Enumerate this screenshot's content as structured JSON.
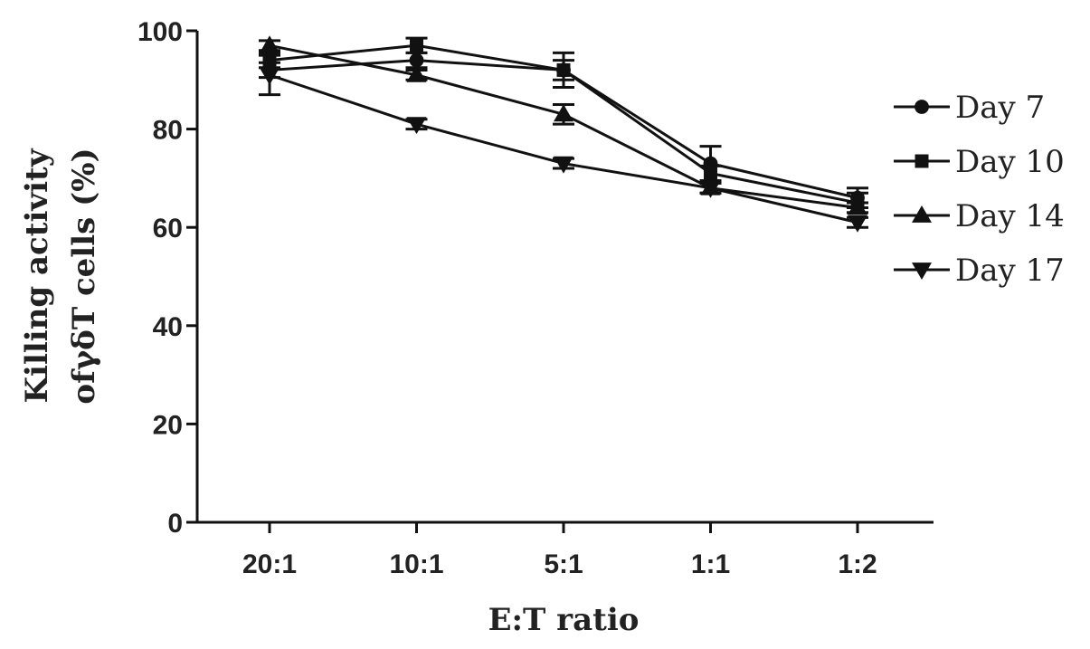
{
  "chart_data": {
    "type": "line",
    "title": "",
    "xlabel": "E:T ratio",
    "ylabel_lines": [
      "Killing activity",
      "ofγδT cells (%)"
    ],
    "categories": [
      "20:1",
      "10:1",
      "5:1",
      "1:1",
      "1:2"
    ],
    "ylim": [
      0,
      100
    ],
    "yticks": [
      0,
      20,
      40,
      60,
      80,
      100
    ],
    "grid": false,
    "legend_position": "right",
    "series": [
      {
        "name": "Day 7",
        "marker": "circle",
        "values": [
          92,
          94,
          92,
          73,
          66
        ],
        "err": [
          1.5,
          1.5,
          2,
          3.5,
          2
        ]
      },
      {
        "name": "Day 10",
        "marker": "square",
        "values": [
          94,
          97,
          92,
          71,
          65
        ],
        "err": [
          1.5,
          1.5,
          3.5,
          1.5,
          2
        ]
      },
      {
        "name": "Day 14",
        "marker": "triangle-up",
        "values": [
          97,
          91,
          83,
          68,
          64
        ],
        "err": [
          1,
          1,
          2,
          1,
          1
        ]
      },
      {
        "name": "Day 17",
        "marker": "triangle-down",
        "values": [
          91,
          81,
          73,
          68,
          61
        ],
        "err": [
          4,
          1,
          1,
          1,
          1
        ]
      }
    ],
    "colors": {
      "line": "#111111",
      "marker": "#111111",
      "axis": "#111111"
    }
  }
}
